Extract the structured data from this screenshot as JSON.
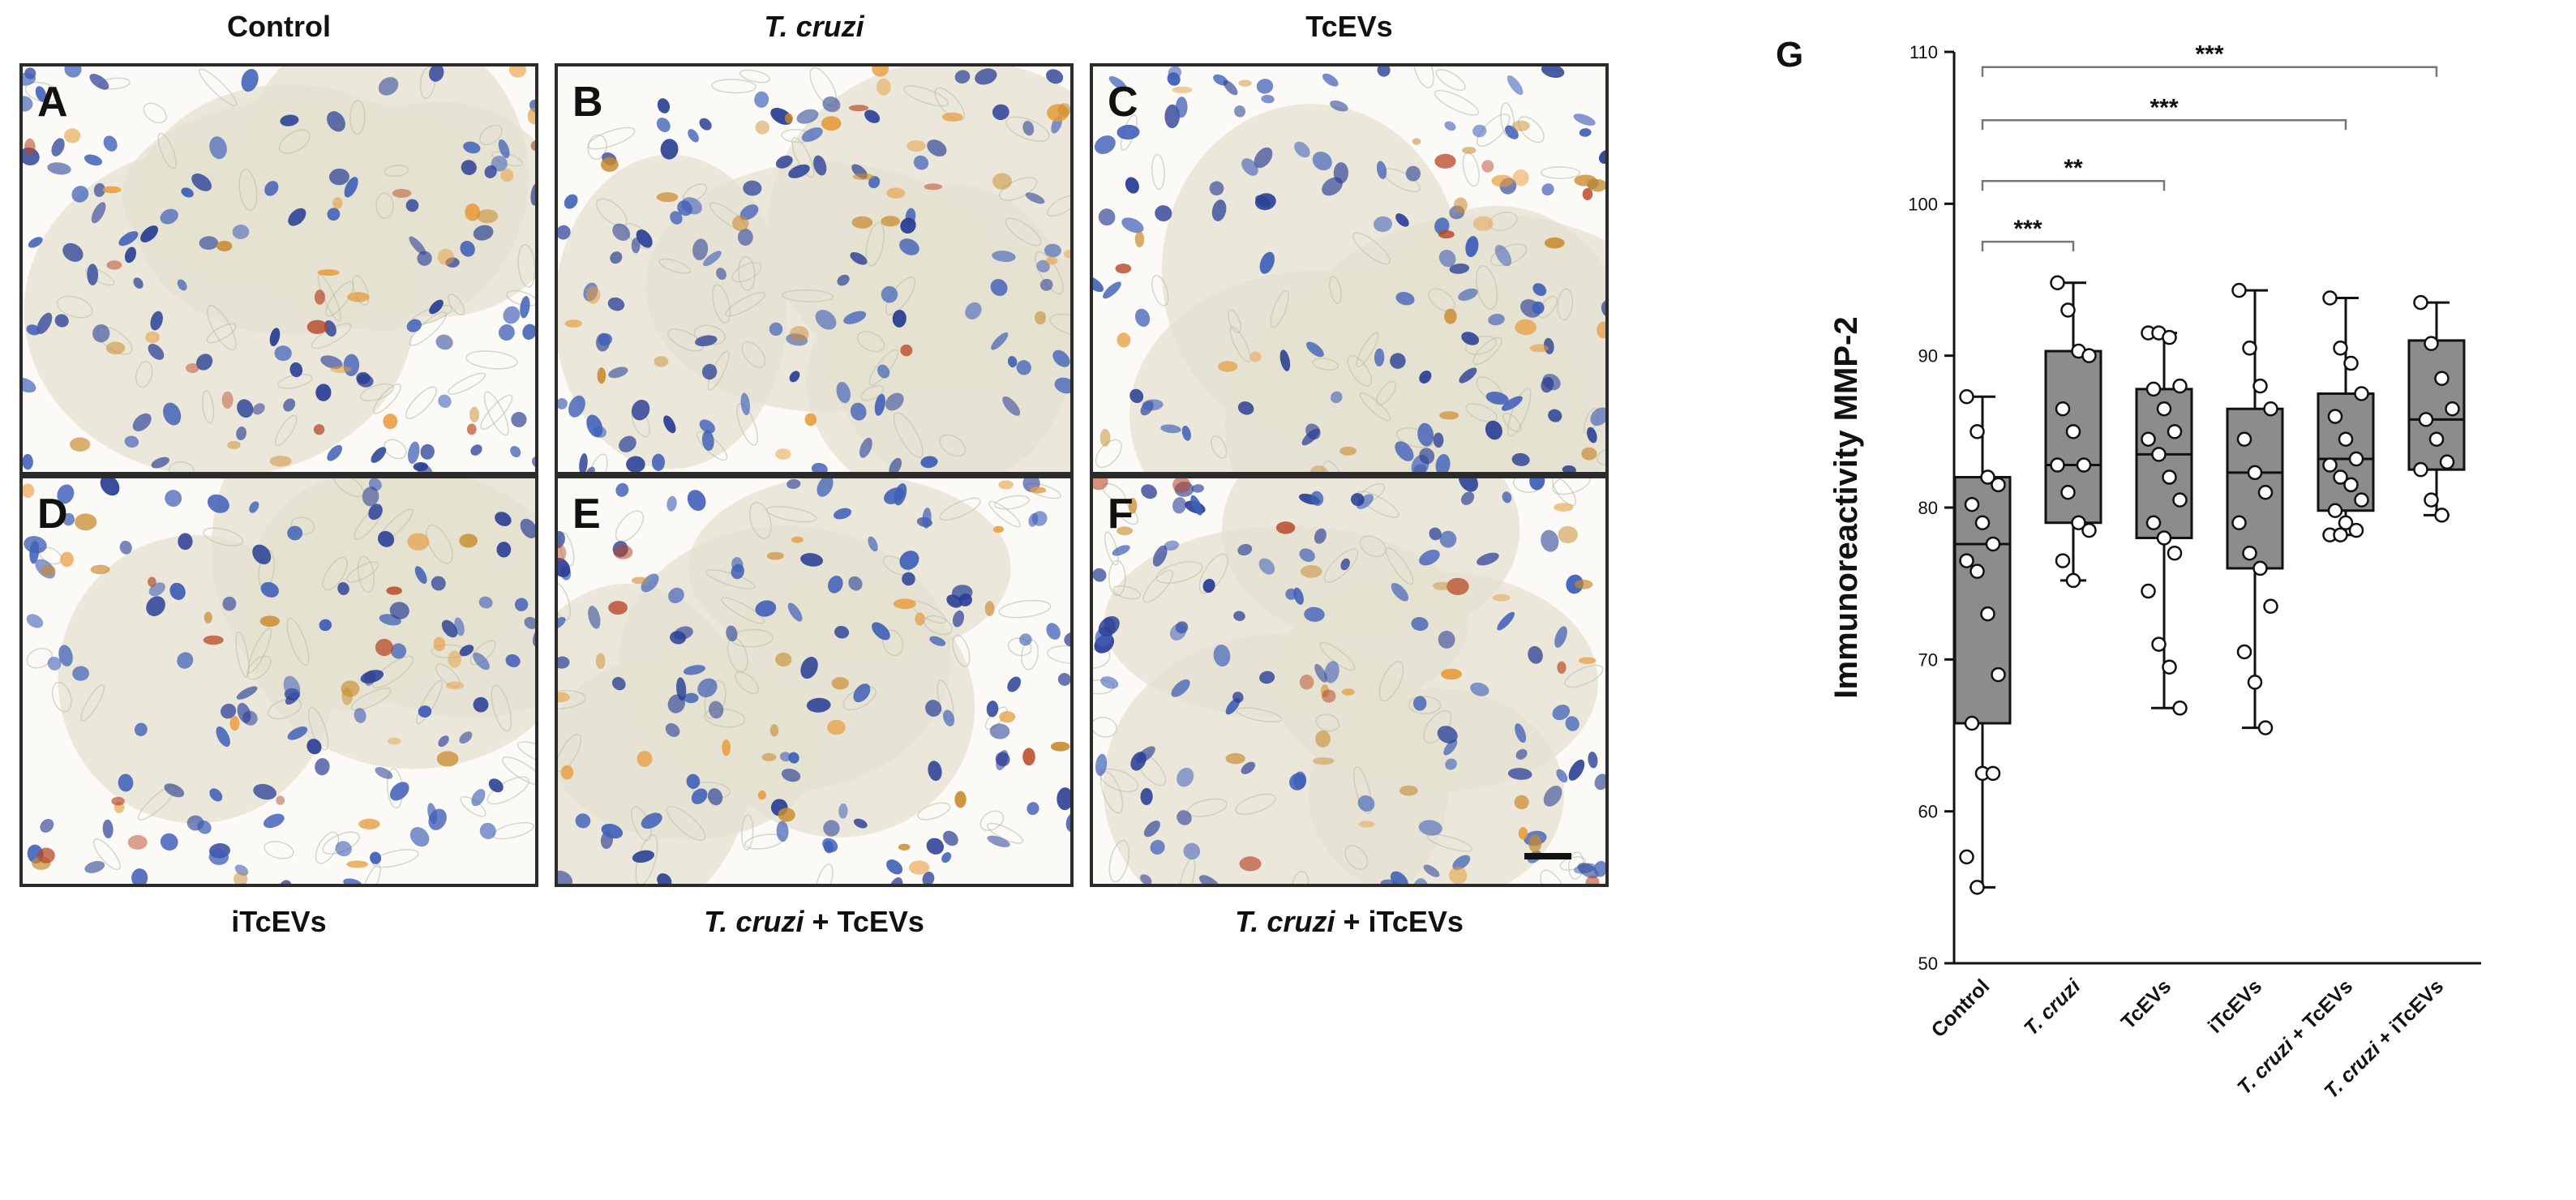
{
  "figure": {
    "column_titles": [
      {
        "prefix": "Control",
        "italic": "",
        "suffix": ""
      },
      {
        "prefix": "",
        "italic": "T. cruzi",
        "suffix": ""
      },
      {
        "prefix": "TcEVs",
        "italic": "",
        "suffix": ""
      }
    ],
    "row_labels": [
      {
        "prefix": "iTcEVs",
        "italic": "",
        "suffix": ""
      },
      {
        "prefix": "",
        "italic": "T. cruzi",
        "suffix": " + TcEVs"
      },
      {
        "prefix": "",
        "italic": "T. cruzi",
        "suffix": " + iTcEVs"
      }
    ],
    "panels": [
      {
        "letter": "A"
      },
      {
        "letter": "B"
      },
      {
        "letter": "C"
      },
      {
        "letter": "D"
      },
      {
        "letter": "E"
      },
      {
        "letter": "F"
      }
    ],
    "tissue_colors": {
      "nucleus": "#3f5fb8",
      "nucleus_dark": "#2a3f95",
      "stain_brown": "#c98a2e",
      "stain_orange": "#e79a3a",
      "stain_red": "#b84525",
      "stroma": "#e6e2d2",
      "background": "#fbfaf6"
    }
  },
  "chart_data": {
    "type": "box",
    "panel_label": "G",
    "ylabel": "Immunoreactivity MMP-2",
    "ylim": [
      50,
      110
    ],
    "yticks": [
      50,
      60,
      70,
      80,
      90,
      100,
      110
    ],
    "box_color": "#8c8c8c",
    "categories": [
      {
        "prefix": "Control",
        "italic": "",
        "suffix": ""
      },
      {
        "prefix": "",
        "italic": "T. cruzi",
        "suffix": ""
      },
      {
        "prefix": "TcEVs",
        "italic": "",
        "suffix": ""
      },
      {
        "prefix": "iTcEVs",
        "italic": "",
        "suffix": ""
      },
      {
        "prefix": "",
        "italic": "T. cruzi",
        "suffix": " + TcEVs"
      },
      {
        "prefix": "",
        "italic": "T. cruzi",
        "suffix": " + iTcEVs"
      }
    ],
    "boxes": [
      {
        "min": 55,
        "q1": 65.8,
        "median": 77.6,
        "q3": 82,
        "max": 87.3,
        "points": [
          87.3,
          85,
          82,
          81.5,
          80.2,
          79,
          77.6,
          76.5,
          75.8,
          73,
          69,
          65.8,
          62.5,
          62.5,
          57,
          55
        ]
      },
      {
        "min": 75.2,
        "q1": 79,
        "median": 82.8,
        "q3": 90.3,
        "max": 94.8,
        "points": [
          94.8,
          93,
          90.3,
          90,
          86.5,
          85,
          82.8,
          82.8,
          81,
          79,
          78.5,
          76.5,
          75.2
        ]
      },
      {
        "min": 66.8,
        "q1": 78,
        "median": 83.5,
        "q3": 87.8,
        "max": 91.5,
        "points": [
          91.5,
          91.5,
          91.2,
          88,
          87.8,
          86.5,
          85,
          84.5,
          83.5,
          82,
          80.5,
          79,
          78,
          77,
          74.5,
          71,
          69.5,
          66.8
        ]
      },
      {
        "min": 65.5,
        "q1": 76,
        "median": 82.3,
        "q3": 86.5,
        "max": 94.3,
        "points": [
          94.3,
          90.5,
          88,
          86.5,
          84.5,
          82.3,
          81,
          79,
          77,
          76,
          73.5,
          70.5,
          68.5,
          65.5
        ]
      },
      {
        "min": 78.2,
        "q1": 79.8,
        "median": 83.2,
        "q3": 87.5,
        "max": 93.8,
        "points": [
          93.8,
          90.5,
          89.5,
          87.5,
          86,
          84.5,
          83.2,
          82.8,
          82,
          81.5,
          80.5,
          79.8,
          79,
          78.5,
          78.2,
          78.2
        ]
      },
      {
        "min": 79.5,
        "q1": 82.5,
        "median": 85.8,
        "q3": 91,
        "max": 93.5,
        "points": [
          93.5,
          90.8,
          88.5,
          86.5,
          85.8,
          84.5,
          83,
          82.5,
          80.5,
          79.5
        ]
      }
    ],
    "significance": [
      {
        "from": 0,
        "to": 1,
        "y": 97.5,
        "label": "***"
      },
      {
        "from": 0,
        "to": 2,
        "y": 101.5,
        "label": "**"
      },
      {
        "from": 0,
        "to": 4,
        "y": 105.5,
        "label": "***"
      },
      {
        "from": 0,
        "to": 5,
        "y": 109,
        "label": "***"
      }
    ]
  }
}
